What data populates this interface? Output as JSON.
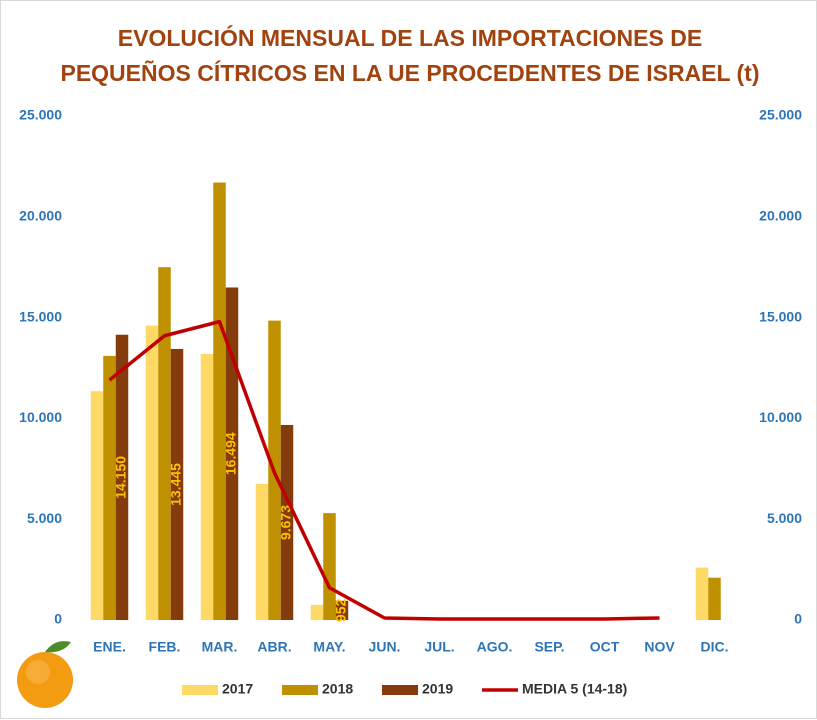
{
  "chart_data": {
    "type": "bar",
    "title": "EVOLUCIÓN MENSUAL DE LAS IMPORTACIONES DE",
    "subtitle": "PEQUEÑOS CÍTRICOS EN LA UE PROCEDENTES DE ISRAEL (t)",
    "categories": [
      "ENE.",
      "FEB.",
      "MAR.",
      "ABR.",
      "MAY.",
      "JUN.",
      "JUL.",
      "AGO.",
      "SEP.",
      "OCT",
      "NOV",
      "DIC."
    ],
    "series": [
      {
        "name": "2017",
        "color": "#ffd966",
        "values": [
          11350,
          14600,
          13200,
          6750,
          750,
          null,
          null,
          null,
          null,
          null,
          null,
          2600
        ]
      },
      {
        "name": "2018",
        "color": "#bf9000",
        "values": [
          13100,
          17500,
          21700,
          14850,
          5300,
          null,
          null,
          null,
          null,
          null,
          null,
          2100
        ]
      },
      {
        "name": "2019",
        "color": "#843c0c",
        "values": [
          14150,
          13445,
          16494,
          9673,
          952,
          null,
          null,
          null,
          null,
          null,
          null,
          null
        ],
        "value_labels": [
          "14.150",
          "13.445",
          "16.494",
          "9.673",
          "952",
          null,
          null,
          null,
          null,
          null,
          null,
          null
        ]
      },
      {
        "name": "MEDIA 5 (14-18)",
        "type": "line",
        "color": "#c00000",
        "values": [
          11900,
          14100,
          14800,
          7300,
          1600,
          100,
          50,
          50,
          50,
          50,
          100,
          null
        ]
      }
    ],
    "ylim": [
      0,
      25000
    ],
    "yticks": [
      0,
      {
        "value": 5000,
        "label": "5.000"
      },
      {
        "value": 10000,
        "label": "10.000"
      },
      {
        "value": 15000,
        "label": "15.000"
      },
      {
        "value": 20000,
        "label": "20.000"
      },
      {
        "value": 25000,
        "label": "25.000"
      }
    ],
    "y2lim": [
      0,
      25000
    ],
    "y2ticks": [
      0,
      {
        "value": 5000,
        "label": "5.000"
      },
      {
        "value": 10000,
        "label": "10.000"
      },
      {
        "value": 15000,
        "label": "15.000"
      },
      {
        "value": 20000,
        "label": "20.000"
      },
      {
        "value": 25000,
        "label": "25.000"
      }
    ],
    "grid": false,
    "legend": "bottom"
  }
}
